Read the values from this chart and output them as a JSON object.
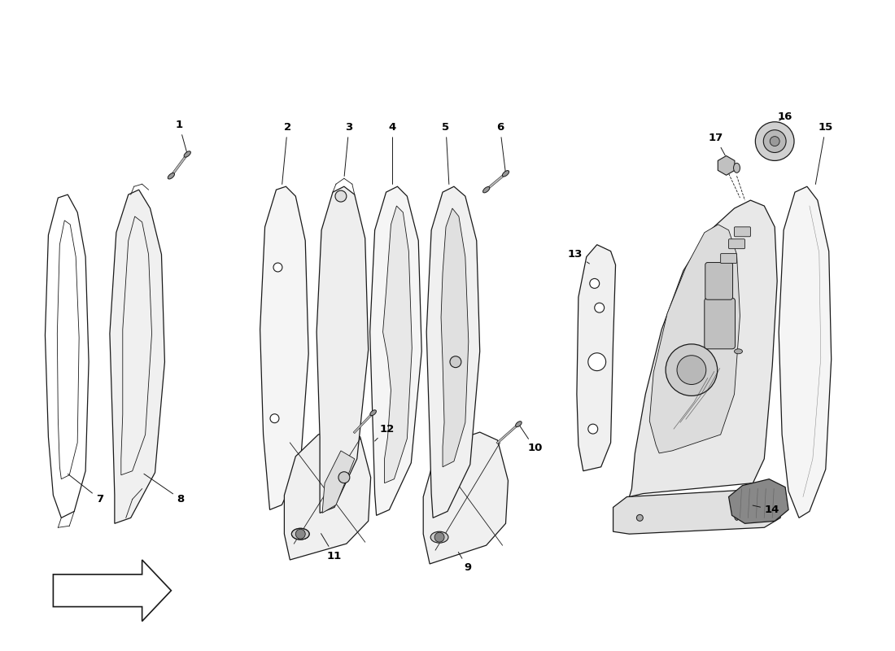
{
  "bg_color": "#ffffff",
  "line_color": "#1a1a1a",
  "label_color": "#000000",
  "fig_width": 11.0,
  "fig_height": 8.0
}
